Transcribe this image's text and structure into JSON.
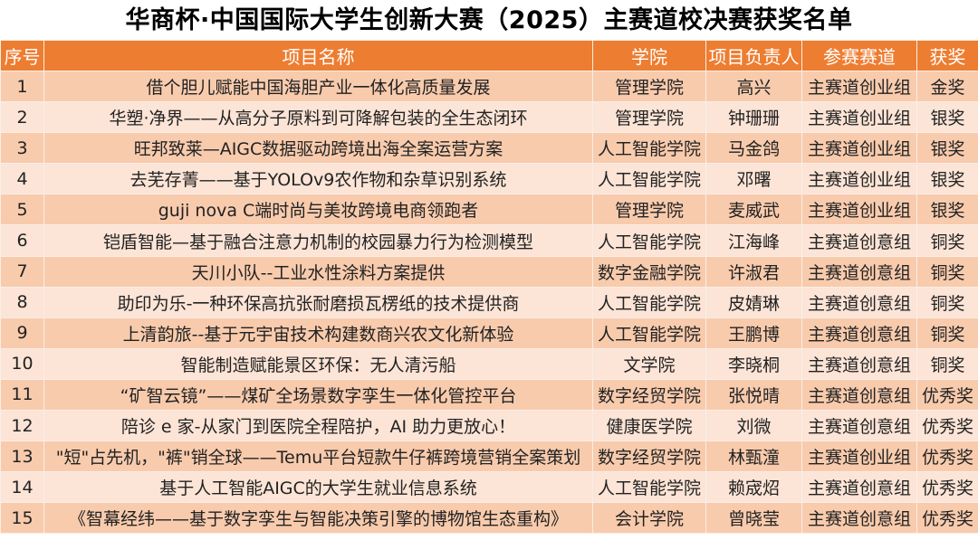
{
  "title": "华商杯·中国国际大学生创新大赛（2025）主赛道校决赛获奖名单",
  "colors": {
    "header": "#ED7D31",
    "row_odd": "#F8CBAD",
    "row_even": "#FCE4D6"
  },
  "headers": [
    "序号",
    "项目名称",
    "学院",
    "项目负责人",
    "参赛赛道",
    "获奖"
  ],
  "rows": [
    [
      "1",
      "借个胆儿赋能中国海胆产业一体化高质量发展",
      "管理学院",
      "高兴",
      "主赛道创业组",
      "金奖"
    ],
    [
      "2",
      "华塑·净界——从高分子原料到可降解包装的全生态闭环",
      "管理学院",
      "钟珊珊",
      "主赛道创业组",
      "银奖"
    ],
    [
      "3",
      "旺邦致莱—AIGC数据驱动跨境出海全案运营方案",
      "人工智能学院",
      "马金鸽",
      "主赛道创业组",
      "银奖"
    ],
    [
      "4",
      "去芜存菁——基于YOLOv9农作物和杂草识别系统",
      "人工智能学院",
      "邓曙",
      "主赛道创业组",
      "银奖"
    ],
    [
      "5",
      "guji nova C端时尚与美妆跨境电商领跑者",
      "管理学院",
      "麦威武",
      "主赛道创业组",
      "银奖"
    ],
    [
      "6",
      "铠盾智能—基于融合注意力机制的校园暴力行为检测模型",
      "人工智能学院",
      "江海峰",
      "主赛道创意组",
      "铜奖"
    ],
    [
      "7",
      "天川小队--工业水性涂料方案提供",
      "数字金融学院",
      "许淑君",
      "主赛道创意组",
      "铜奖"
    ],
    [
      "8",
      "助印为乐-一种环保高抗张耐磨损瓦楞纸的技术提供商",
      "人工智能学院",
      "皮婧琳",
      "主赛道创意组",
      "铜奖"
    ],
    [
      "9",
      "上清韵旅--基于元宇宙技术构建数商兴农文化新体验",
      "人工智能学院",
      "王鹏博",
      "主赛道创意组",
      "铜奖"
    ],
    [
      "10",
      "智能制造赋能景区环保：无人清污船",
      "文学院",
      "李晓桐",
      "主赛道创意组",
      "铜奖"
    ],
    [
      "11",
      "“矿智云镜”——煤矿全场景数字孪生一体化管控平台",
      "数字经贸学院",
      "张悦晴",
      "主赛道创意组",
      "优秀奖"
    ],
    [
      "12",
      "陪诊 e 家-从家门到医院全程陪护，AI 助力更放心！",
      "健康医学院",
      "刘微",
      "主赛道创意组",
      "优秀奖"
    ],
    [
      "13",
      "\"短\"占先机，\"裤\"销全球——Temu平台短款牛仔裤跨境营销全案策划",
      "数字经贸学院",
      "林甄潼",
      "主赛道创业组",
      "优秀奖"
    ],
    [
      "14",
      "基于人工智能AIGC的大学生就业信息系统",
      "人工智能学院",
      "赖宬炤",
      "主赛道创意组",
      "优秀奖"
    ],
    [
      "15",
      "《智幕经纬——基于数字孪生与智能决策引擎的博物馆生态重构》",
      "会计学院",
      "曾晓莹",
      "主赛道创意组",
      "优秀奖"
    ]
  ]
}
